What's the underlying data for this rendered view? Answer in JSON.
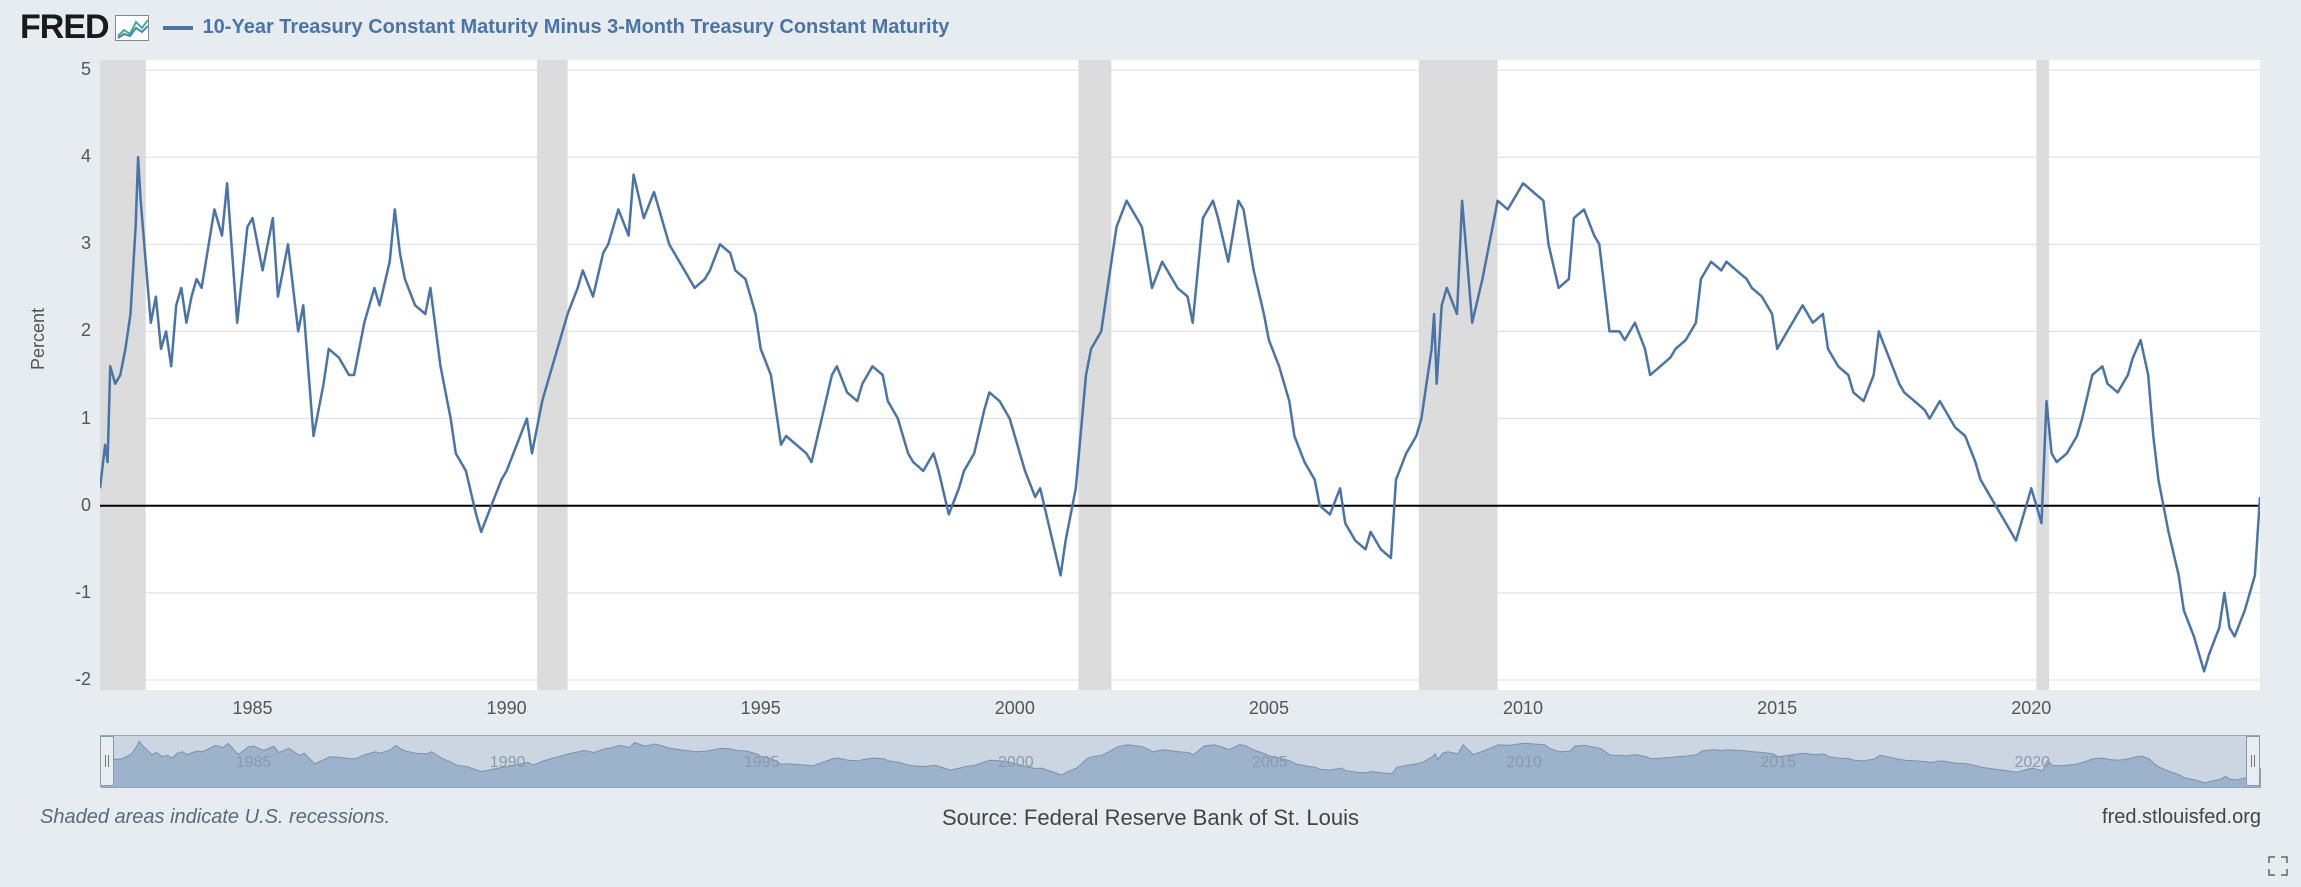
{
  "logo": {
    "text": "FRED"
  },
  "series": {
    "label": "10-Year Treasury Constant Maturity Minus 3-Month Treasury Constant Maturity",
    "color": "#4a74a8",
    "line_width": 2.5
  },
  "chart": {
    "type": "line",
    "background_color": "#ffffff",
    "page_background": "#e7ecf0",
    "ylabel": "Percent",
    "ylabel_fontsize": 18,
    "ylim": [
      -2,
      5
    ],
    "yticks": [
      -2,
      -1,
      0,
      1,
      2,
      3,
      4,
      5
    ],
    "xlim": [
      1982,
      2024.5
    ],
    "xticks": [
      1985,
      1990,
      1995,
      2000,
      2005,
      2010,
      2015,
      2020
    ],
    "grid_color": "#d8dde2",
    "zero_line_color": "#000000",
    "zero_line_width": 2,
    "recession_color": "#dcdcdc",
    "recessions": [
      [
        1981.5,
        1982.9
      ],
      [
        1990.6,
        1991.2
      ],
      [
        2001.25,
        2001.9
      ],
      [
        2007.95,
        2009.5
      ],
      [
        2020.1,
        2020.35
      ]
    ],
    "data": [
      [
        1982.0,
        0.2
      ],
      [
        1982.1,
        0.7
      ],
      [
        1982.15,
        0.5
      ],
      [
        1982.2,
        1.6
      ],
      [
        1982.3,
        1.4
      ],
      [
        1982.4,
        1.5
      ],
      [
        1982.5,
        1.8
      ],
      [
        1982.6,
        2.2
      ],
      [
        1982.7,
        3.2
      ],
      [
        1982.75,
        4.0
      ],
      [
        1982.8,
        3.5
      ],
      [
        1982.9,
        2.8
      ],
      [
        1983.0,
        2.1
      ],
      [
        1983.1,
        2.4
      ],
      [
        1983.2,
        1.8
      ],
      [
        1983.3,
        2.0
      ],
      [
        1983.4,
        1.6
      ],
      [
        1983.5,
        2.3
      ],
      [
        1983.6,
        2.5
      ],
      [
        1983.7,
        2.1
      ],
      [
        1983.8,
        2.4
      ],
      [
        1983.9,
        2.6
      ],
      [
        1984.0,
        2.5
      ],
      [
        1984.25,
        3.4
      ],
      [
        1984.4,
        3.1
      ],
      [
        1984.5,
        3.7
      ],
      [
        1984.7,
        2.1
      ],
      [
        1984.9,
        3.2
      ],
      [
        1985.0,
        3.3
      ],
      [
        1985.2,
        2.7
      ],
      [
        1985.4,
        3.3
      ],
      [
        1985.5,
        2.4
      ],
      [
        1985.7,
        3.0
      ],
      [
        1985.9,
        2.0
      ],
      [
        1986.0,
        2.3
      ],
      [
        1986.2,
        0.8
      ],
      [
        1986.4,
        1.4
      ],
      [
        1986.5,
        1.8
      ],
      [
        1986.7,
        1.7
      ],
      [
        1986.9,
        1.5
      ],
      [
        1987.0,
        1.5
      ],
      [
        1987.2,
        2.1
      ],
      [
        1987.4,
        2.5
      ],
      [
        1987.5,
        2.3
      ],
      [
        1987.7,
        2.8
      ],
      [
        1987.8,
        3.4
      ],
      [
        1987.9,
        2.9
      ],
      [
        1988.0,
        2.6
      ],
      [
        1988.2,
        2.3
      ],
      [
        1988.4,
        2.2
      ],
      [
        1988.5,
        2.5
      ],
      [
        1988.7,
        1.6
      ],
      [
        1988.9,
        1.0
      ],
      [
        1989.0,
        0.6
      ],
      [
        1989.2,
        0.4
      ],
      [
        1989.4,
        -0.1
      ],
      [
        1989.5,
        -0.3
      ],
      [
        1989.7,
        0.0
      ],
      [
        1989.9,
        0.3
      ],
      [
        1990.0,
        0.4
      ],
      [
        1990.2,
        0.7
      ],
      [
        1990.4,
        1.0
      ],
      [
        1990.5,
        0.6
      ],
      [
        1990.7,
        1.2
      ],
      [
        1990.9,
        1.6
      ],
      [
        1991.0,
        1.8
      ],
      [
        1991.2,
        2.2
      ],
      [
        1991.4,
        2.5
      ],
      [
        1991.5,
        2.7
      ],
      [
        1991.7,
        2.4
      ],
      [
        1991.9,
        2.9
      ],
      [
        1992.0,
        3.0
      ],
      [
        1992.2,
        3.4
      ],
      [
        1992.4,
        3.1
      ],
      [
        1992.5,
        3.8
      ],
      [
        1992.7,
        3.3
      ],
      [
        1992.9,
        3.6
      ],
      [
        1993.0,
        3.4
      ],
      [
        1993.2,
        3.0
      ],
      [
        1993.4,
        2.8
      ],
      [
        1993.5,
        2.7
      ],
      [
        1993.7,
        2.5
      ],
      [
        1993.9,
        2.6
      ],
      [
        1994.0,
        2.7
      ],
      [
        1994.2,
        3.0
      ],
      [
        1994.4,
        2.9
      ],
      [
        1994.5,
        2.7
      ],
      [
        1994.7,
        2.6
      ],
      [
        1994.9,
        2.2
      ],
      [
        1995.0,
        1.8
      ],
      [
        1995.2,
        1.5
      ],
      [
        1995.4,
        0.7
      ],
      [
        1995.5,
        0.8
      ],
      [
        1995.7,
        0.7
      ],
      [
        1995.9,
        0.6
      ],
      [
        1996.0,
        0.5
      ],
      [
        1996.2,
        1.0
      ],
      [
        1996.4,
        1.5
      ],
      [
        1996.5,
        1.6
      ],
      [
        1996.7,
        1.3
      ],
      [
        1996.9,
        1.2
      ],
      [
        1997.0,
        1.4
      ],
      [
        1997.2,
        1.6
      ],
      [
        1997.4,
        1.5
      ],
      [
        1997.5,
        1.2
      ],
      [
        1997.7,
        1.0
      ],
      [
        1997.9,
        0.6
      ],
      [
        1998.0,
        0.5
      ],
      [
        1998.2,
        0.4
      ],
      [
        1998.4,
        0.6
      ],
      [
        1998.5,
        0.4
      ],
      [
        1998.7,
        -0.1
      ],
      [
        1998.9,
        0.2
      ],
      [
        1999.0,
        0.4
      ],
      [
        1999.2,
        0.6
      ],
      [
        1999.4,
        1.1
      ],
      [
        1999.5,
        1.3
      ],
      [
        1999.7,
        1.2
      ],
      [
        1999.9,
        1.0
      ],
      [
        2000.0,
        0.8
      ],
      [
        2000.2,
        0.4
      ],
      [
        2000.4,
        0.1
      ],
      [
        2000.5,
        0.2
      ],
      [
        2000.7,
        -0.3
      ],
      [
        2000.9,
        -0.8
      ],
      [
        2001.0,
        -0.4
      ],
      [
        2001.2,
        0.2
      ],
      [
        2001.4,
        1.5
      ],
      [
        2001.5,
        1.8
      ],
      [
        2001.7,
        2.0
      ],
      [
        2001.9,
        2.8
      ],
      [
        2002.0,
        3.2
      ],
      [
        2002.2,
        3.5
      ],
      [
        2002.4,
        3.3
      ],
      [
        2002.5,
        3.2
      ],
      [
        2002.7,
        2.5
      ],
      [
        2002.9,
        2.8
      ],
      [
        2003.0,
        2.7
      ],
      [
        2003.2,
        2.5
      ],
      [
        2003.4,
        2.4
      ],
      [
        2003.5,
        2.1
      ],
      [
        2003.7,
        3.3
      ],
      [
        2003.9,
        3.5
      ],
      [
        2004.0,
        3.3
      ],
      [
        2004.2,
        2.8
      ],
      [
        2004.4,
        3.5
      ],
      [
        2004.5,
        3.4
      ],
      [
        2004.7,
        2.7
      ],
      [
        2004.9,
        2.2
      ],
      [
        2005.0,
        1.9
      ],
      [
        2005.2,
        1.6
      ],
      [
        2005.4,
        1.2
      ],
      [
        2005.5,
        0.8
      ],
      [
        2005.7,
        0.5
      ],
      [
        2005.9,
        0.3
      ],
      [
        2006.0,
        0.0
      ],
      [
        2006.2,
        -0.1
      ],
      [
        2006.4,
        0.2
      ],
      [
        2006.5,
        -0.2
      ],
      [
        2006.7,
        -0.4
      ],
      [
        2006.9,
        -0.5
      ],
      [
        2007.0,
        -0.3
      ],
      [
        2007.2,
        -0.5
      ],
      [
        2007.4,
        -0.6
      ],
      [
        2007.5,
        0.3
      ],
      [
        2007.7,
        0.6
      ],
      [
        2007.9,
        0.8
      ],
      [
        2008.0,
        1.0
      ],
      [
        2008.2,
        1.8
      ],
      [
        2008.25,
        2.2
      ],
      [
        2008.3,
        1.4
      ],
      [
        2008.4,
        2.3
      ],
      [
        2008.5,
        2.5
      ],
      [
        2008.7,
        2.2
      ],
      [
        2008.8,
        3.5
      ],
      [
        2008.9,
        2.8
      ],
      [
        2009.0,
        2.1
      ],
      [
        2009.2,
        2.6
      ],
      [
        2009.4,
        3.2
      ],
      [
        2009.5,
        3.5
      ],
      [
        2009.7,
        3.4
      ],
      [
        2009.9,
        3.6
      ],
      [
        2010.0,
        3.7
      ],
      [
        2010.2,
        3.6
      ],
      [
        2010.4,
        3.5
      ],
      [
        2010.5,
        3.0
      ],
      [
        2010.7,
        2.5
      ],
      [
        2010.9,
        2.6
      ],
      [
        2011.0,
        3.3
      ],
      [
        2011.2,
        3.4
      ],
      [
        2011.4,
        3.1
      ],
      [
        2011.5,
        3.0
      ],
      [
        2011.7,
        2.0
      ],
      [
        2011.9,
        2.0
      ],
      [
        2012.0,
        1.9
      ],
      [
        2012.2,
        2.1
      ],
      [
        2012.4,
        1.8
      ],
      [
        2012.5,
        1.5
      ],
      [
        2012.7,
        1.6
      ],
      [
        2012.9,
        1.7
      ],
      [
        2013.0,
        1.8
      ],
      [
        2013.2,
        1.9
      ],
      [
        2013.4,
        2.1
      ],
      [
        2013.5,
        2.6
      ],
      [
        2013.7,
        2.8
      ],
      [
        2013.9,
        2.7
      ],
      [
        2014.0,
        2.8
      ],
      [
        2014.2,
        2.7
      ],
      [
        2014.4,
        2.6
      ],
      [
        2014.5,
        2.5
      ],
      [
        2014.7,
        2.4
      ],
      [
        2014.9,
        2.2
      ],
      [
        2015.0,
        1.8
      ],
      [
        2015.2,
        2.0
      ],
      [
        2015.4,
        2.2
      ],
      [
        2015.5,
        2.3
      ],
      [
        2015.7,
        2.1
      ],
      [
        2015.9,
        2.2
      ],
      [
        2016.0,
        1.8
      ],
      [
        2016.2,
        1.6
      ],
      [
        2016.4,
        1.5
      ],
      [
        2016.5,
        1.3
      ],
      [
        2016.7,
        1.2
      ],
      [
        2016.9,
        1.5
      ],
      [
        2017.0,
        2.0
      ],
      [
        2017.2,
        1.7
      ],
      [
        2017.4,
        1.4
      ],
      [
        2017.5,
        1.3
      ],
      [
        2017.7,
        1.2
      ],
      [
        2017.9,
        1.1
      ],
      [
        2018.0,
        1.0
      ],
      [
        2018.2,
        1.2
      ],
      [
        2018.4,
        1.0
      ],
      [
        2018.5,
        0.9
      ],
      [
        2018.7,
        0.8
      ],
      [
        2018.9,
        0.5
      ],
      [
        2019.0,
        0.3
      ],
      [
        2019.2,
        0.1
      ],
      [
        2019.4,
        -0.1
      ],
      [
        2019.5,
        -0.2
      ],
      [
        2019.7,
        -0.4
      ],
      [
        2019.9,
        0.0
      ],
      [
        2020.0,
        0.2
      ],
      [
        2020.2,
        -0.2
      ],
      [
        2020.3,
        1.2
      ],
      [
        2020.4,
        0.6
      ],
      [
        2020.5,
        0.5
      ],
      [
        2020.7,
        0.6
      ],
      [
        2020.9,
        0.8
      ],
      [
        2021.0,
        1.0
      ],
      [
        2021.2,
        1.5
      ],
      [
        2021.4,
        1.6
      ],
      [
        2021.5,
        1.4
      ],
      [
        2021.7,
        1.3
      ],
      [
        2021.9,
        1.5
      ],
      [
        2022.0,
        1.7
      ],
      [
        2022.15,
        1.9
      ],
      [
        2022.3,
        1.5
      ],
      [
        2022.4,
        0.8
      ],
      [
        2022.5,
        0.3
      ],
      [
        2022.7,
        -0.3
      ],
      [
        2022.9,
        -0.8
      ],
      [
        2023.0,
        -1.2
      ],
      [
        2023.2,
        -1.5
      ],
      [
        2023.4,
        -1.9
      ],
      [
        2023.5,
        -1.7
      ],
      [
        2023.7,
        -1.4
      ],
      [
        2023.8,
        -1.0
      ],
      [
        2023.9,
        -1.4
      ],
      [
        2024.0,
        -1.5
      ],
      [
        2024.2,
        -1.2
      ],
      [
        2024.4,
        -0.8
      ],
      [
        2024.5,
        0.1
      ]
    ]
  },
  "navigator": {
    "background_color": "#ccd6e2",
    "area_color": "#9db3cc",
    "years": [
      1985,
      1990,
      1995,
      2000,
      2005,
      2010,
      2015,
      2020
    ]
  },
  "footer": {
    "recession_note": "Shaded areas indicate U.S. recessions.",
    "source": "Source: Federal Reserve Bank of St. Louis",
    "site": "fred.stlouisfed.org"
  }
}
